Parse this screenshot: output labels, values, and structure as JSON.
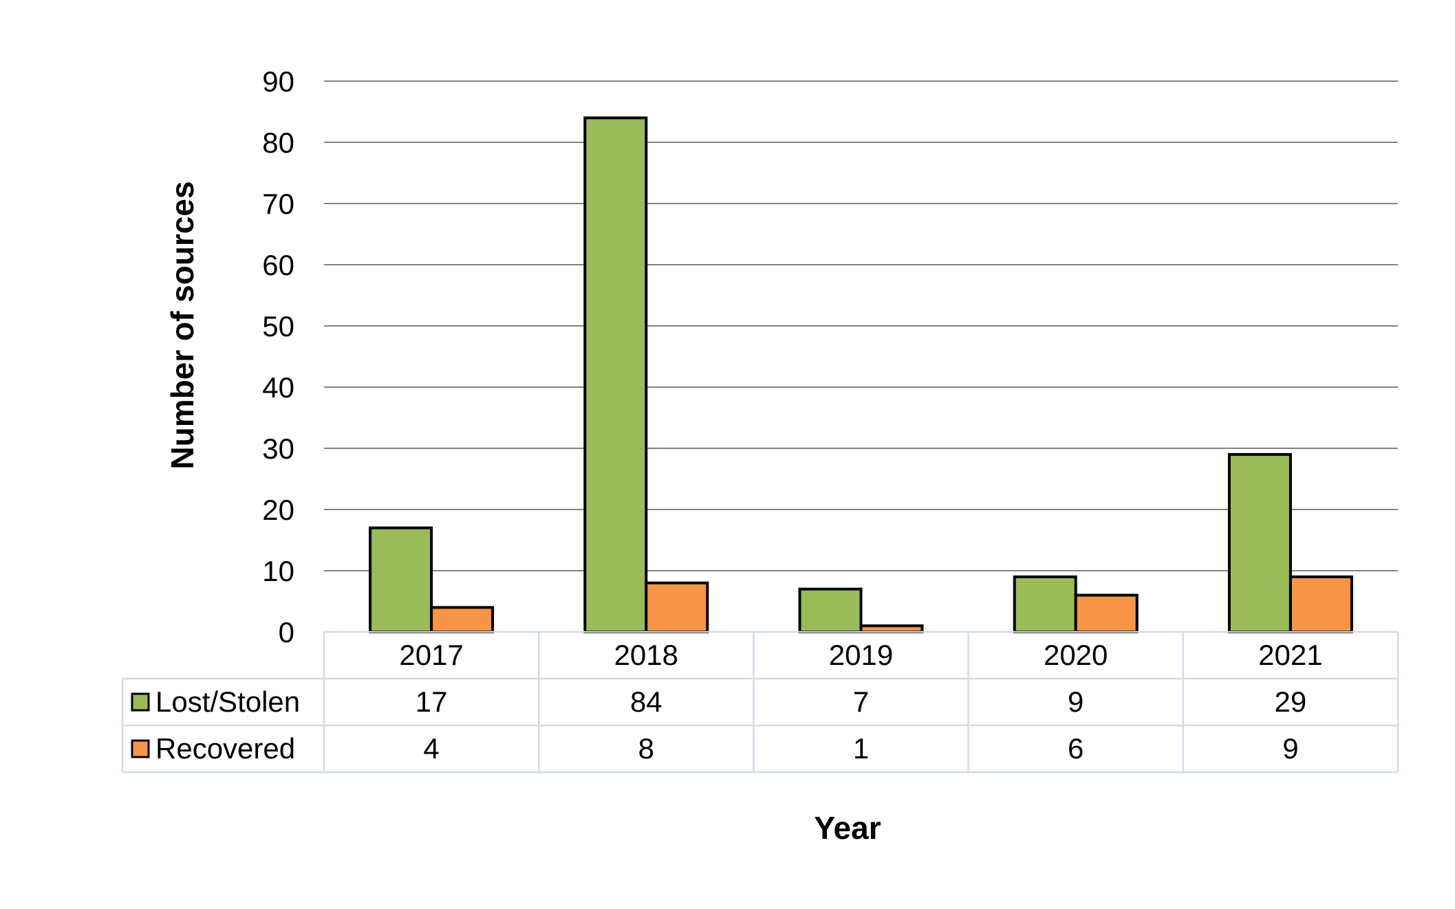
{
  "chart_data": {
    "type": "bar",
    "title": "",
    "xlabel": "Year",
    "ylabel": "Number of sources",
    "ylim": [
      0,
      90
    ],
    "yticks": [
      0,
      10,
      20,
      30,
      40,
      50,
      60,
      70,
      80,
      90
    ],
    "categories": [
      "2017",
      "2018",
      "2019",
      "2020",
      "2021"
    ],
    "series": [
      {
        "name": "Lost/Stolen",
        "color": "#9BBB59",
        "values": [
          17,
          84,
          7,
          9,
          29
        ]
      },
      {
        "name": "Recovered",
        "color": "#F79646",
        "values": [
          4,
          8,
          1,
          6,
          9
        ]
      }
    ],
    "grid": true,
    "legend": "data-table",
    "data_table": true
  }
}
